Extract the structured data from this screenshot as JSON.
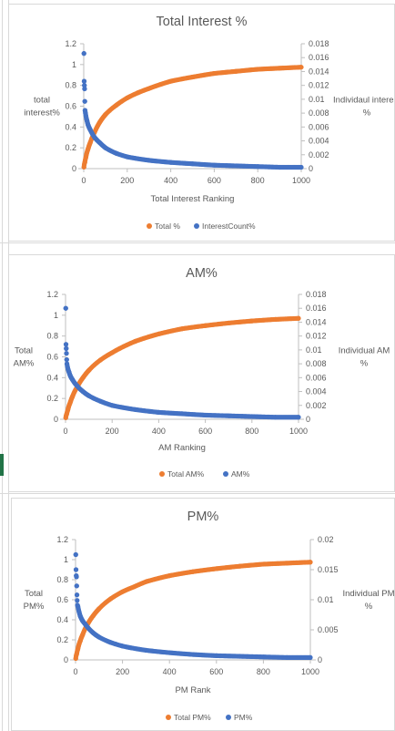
{
  "colors": {
    "total": "#ED7D31",
    "individual": "#4472C4",
    "axis": "#bfbfbf",
    "text": "#595959"
  },
  "chart_data": [
    {
      "type": "scatter",
      "title": "Total Interest %",
      "xlabel": "Total Interest Ranking",
      "ylabel_left": "total interest%",
      "ylabel_right": "Individaul interest %",
      "xlim": [
        0,
        1000
      ],
      "ylim_left": [
        0,
        1.2
      ],
      "ylim_right": [
        0,
        0.018
      ],
      "x_ticks": [
        "0",
        "200",
        "400",
        "600",
        "800",
        "1000"
      ],
      "y_left_ticks": [
        "0",
        "0.2",
        "0.4",
        "0.6",
        "0.8",
        "1",
        "1.2"
      ],
      "y_right_ticks": [
        "0",
        "0.002",
        "0.004",
        "0.006",
        "0.008",
        "0.01",
        "0.012",
        "0.014",
        "0.016",
        "0.018"
      ],
      "legend": [
        "Total %",
        "InterestCount%"
      ],
      "legend_position": "bottom",
      "series": [
        {
          "name": "Total %",
          "axis": "left",
          "color": "#ED7D31",
          "x": [
            1,
            5,
            10,
            20,
            30,
            50,
            75,
            100,
            150,
            200,
            250,
            300,
            400,
            500,
            600,
            700,
            800,
            900,
            1000
          ],
          "y": [
            0.015,
            0.06,
            0.11,
            0.19,
            0.25,
            0.35,
            0.45,
            0.52,
            0.61,
            0.68,
            0.73,
            0.77,
            0.84,
            0.88,
            0.915,
            0.935,
            0.955,
            0.965,
            0.975
          ]
        },
        {
          "name": "InterestCount%",
          "axis": "right",
          "color": "#4472C4",
          "x": [
            1,
            2,
            3,
            4,
            5,
            6,
            8,
            10,
            15,
            20,
            30,
            40,
            50,
            75,
            100,
            150,
            200,
            300,
            400,
            500,
            600,
            700,
            800,
            900,
            1000
          ],
          "y": [
            0.0166,
            0.0126,
            0.012,
            0.0115,
            0.0097,
            0.0084,
            0.008,
            0.0076,
            0.0069,
            0.0063,
            0.0056,
            0.005,
            0.0045,
            0.0037,
            0.003,
            0.0022,
            0.0017,
            0.0012,
            0.0009,
            0.0007,
            0.0005,
            0.0004,
            0.0003,
            0.0002,
            0.0002
          ]
        }
      ]
    },
    {
      "type": "scatter",
      "title": "AM%",
      "xlabel": "AM Ranking",
      "ylabel_left": "Total AM%",
      "ylabel_right": "Individual AM %",
      "xlim": [
        0,
        1000
      ],
      "ylim_left": [
        0,
        1.2
      ],
      "ylim_right": [
        0,
        0.018
      ],
      "x_ticks": [
        "0",
        "200",
        "400",
        "600",
        "800",
        "1000"
      ],
      "y_left_ticks": [
        "0",
        "0.2",
        "0.4",
        "0.6",
        "0.8",
        "1",
        "1.2"
      ],
      "y_right_ticks": [
        "0",
        "0.002",
        "0.004",
        "0.006",
        "0.008",
        "0.01",
        "0.012",
        "0.014",
        "0.016",
        "0.018"
      ],
      "legend": [
        "Total AM%",
        "AM%"
      ],
      "legend_position": "bottom",
      "series": [
        {
          "name": "Total AM%",
          "axis": "left",
          "color": "#ED7D31",
          "x": [
            1,
            5,
            10,
            20,
            30,
            50,
            75,
            100,
            150,
            200,
            250,
            300,
            400,
            500,
            600,
            700,
            800,
            900,
            1000
          ],
          "y": [
            0.015,
            0.05,
            0.09,
            0.16,
            0.22,
            0.31,
            0.4,
            0.47,
            0.57,
            0.64,
            0.7,
            0.75,
            0.82,
            0.87,
            0.9,
            0.925,
            0.945,
            0.96,
            0.97
          ]
        },
        {
          "name": "AM%",
          "axis": "right",
          "color": "#4472C4",
          "x": [
            1,
            2,
            3,
            4,
            5,
            6,
            8,
            10,
            15,
            20,
            30,
            40,
            50,
            75,
            100,
            150,
            200,
            300,
            400,
            500,
            600,
            700,
            800,
            900,
            1000
          ],
          "y": [
            0.016,
            0.0108,
            0.0102,
            0.0095,
            0.0086,
            0.008,
            0.0076,
            0.0073,
            0.0068,
            0.0063,
            0.0057,
            0.0052,
            0.0048,
            0.004,
            0.0034,
            0.0026,
            0.002,
            0.0014,
            0.001,
            0.0008,
            0.0006,
            0.0005,
            0.0004,
            0.0003,
            0.0003
          ]
        }
      ]
    },
    {
      "type": "scatter",
      "title": "PM%",
      "xlabel": "PM Rank",
      "ylabel_left": "Total PM%",
      "ylabel_right": "Individual PM %",
      "xlim": [
        0,
        1000
      ],
      "ylim_left": [
        0,
        1.2
      ],
      "ylim_right": [
        0,
        0.02
      ],
      "x_ticks": [
        "0",
        "200",
        "400",
        "600",
        "800",
        "1000"
      ],
      "y_left_ticks": [
        "0",
        "0.2",
        "0.4",
        "0.6",
        "0.8",
        "1",
        "1.2"
      ],
      "y_right_ticks": [
        "0",
        "0.005",
        "0.01",
        "0.015",
        "0.02"
      ],
      "legend": [
        "Total PM%",
        "PM%"
      ],
      "legend_position": "bottom",
      "series": [
        {
          "name": "Total PM%",
          "axis": "left",
          "color": "#ED7D31",
          "x": [
            1,
            5,
            10,
            20,
            30,
            50,
            75,
            100,
            150,
            200,
            250,
            300,
            400,
            500,
            600,
            700,
            800,
            900,
            1000
          ],
          "y": [
            0.015,
            0.06,
            0.11,
            0.19,
            0.25,
            0.35,
            0.44,
            0.51,
            0.61,
            0.68,
            0.73,
            0.78,
            0.84,
            0.88,
            0.91,
            0.935,
            0.955,
            0.965,
            0.975
          ]
        },
        {
          "name": "PM%",
          "axis": "right",
          "color": "#4472C4",
          "x": [
            1,
            2,
            3,
            4,
            5,
            6,
            8,
            10,
            15,
            20,
            30,
            40,
            50,
            75,
            100,
            150,
            200,
            300,
            400,
            500,
            600,
            700,
            800,
            900,
            1000
          ],
          "y": [
            0.0175,
            0.015,
            0.014,
            0.0138,
            0.0123,
            0.0108,
            0.0091,
            0.0089,
            0.008,
            0.0073,
            0.0065,
            0.006,
            0.0055,
            0.0045,
            0.0038,
            0.0029,
            0.0023,
            0.0016,
            0.0012,
            0.0009,
            0.0007,
            0.0006,
            0.0005,
            0.0004,
            0.0004
          ]
        }
      ]
    }
  ]
}
